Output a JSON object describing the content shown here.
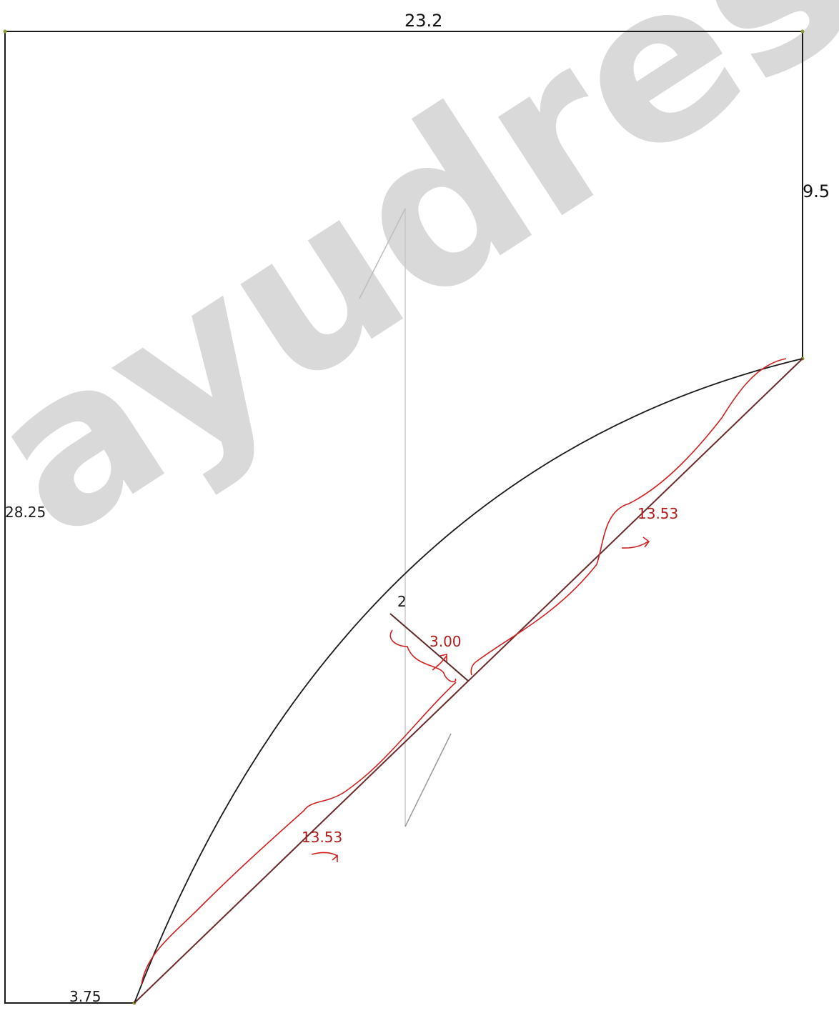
{
  "watermark": "ayudress.in",
  "dimensions": {
    "top_width": "23.2",
    "right_drop": "9.5",
    "left_height": "28.25",
    "bottom_width": "3.75",
    "center_mark": "2"
  },
  "annotations": {
    "depth": "3.00",
    "upper_segment": "13.53",
    "lower_segment": "13.53"
  },
  "colors": {
    "outline": "#1a1a1a",
    "guide": "#c8c8c8",
    "diagonal": "#6b2a2a",
    "annotation": "#b01c1c",
    "watermark": "#d9d9d9"
  }
}
